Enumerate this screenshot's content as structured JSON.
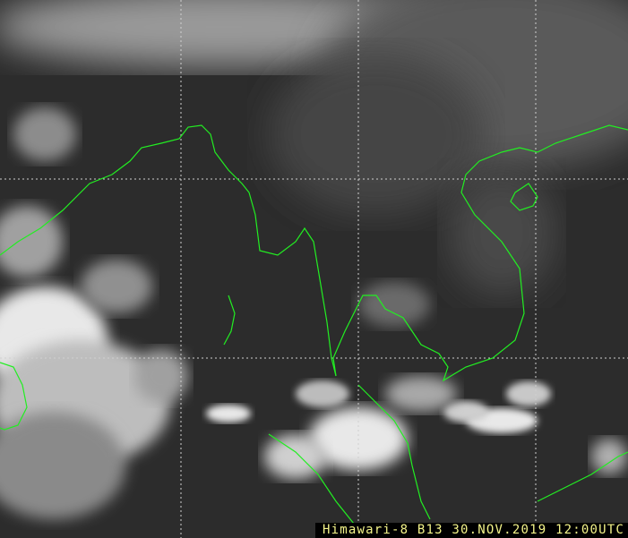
{
  "image": {
    "kind": "infrared satellite image",
    "caption": "Himawari-8 B13 30.NOV.2019 12:00UTC",
    "colors": {
      "coastline": "#22ee22",
      "grid": "#d0d0d0",
      "caption_text": "#f4f48a",
      "background": "#2e2e2e"
    }
  }
}
